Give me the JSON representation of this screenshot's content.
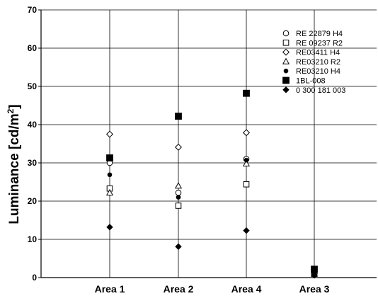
{
  "chart_data": {
    "type": "scatter",
    "ylabel": "Luminance [cd/m²]",
    "ylabel_main": "Luminance [cd/m",
    "ylabel_sup": "2",
    "ylabel_close": "]",
    "ylim": [
      0,
      70
    ],
    "yticks": [
      0,
      10,
      20,
      30,
      40,
      50,
      60,
      70
    ],
    "grid": "horizontal and vertical",
    "legend_placement": "top-right",
    "categories": [
      "Area 1",
      "Area 2",
      "Area 4",
      "Area 3"
    ],
    "series": [
      {
        "name": "RE 22879 H4",
        "marker": "open-circle",
        "values": [
          30.0,
          22.2,
          31.0,
          1.0
        ]
      },
      {
        "name": "RE 09237 R2",
        "marker": "open-square",
        "values": [
          23.3,
          18.8,
          24.4,
          1.0
        ]
      },
      {
        "name": "RE03411 H4",
        "marker": "open-diamond",
        "values": [
          37.5,
          34.1,
          37.9,
          1.0
        ]
      },
      {
        "name": "RE03210 R2",
        "marker": "open-triangle",
        "values": [
          22.2,
          24.0,
          29.8,
          1.0
        ]
      },
      {
        "name": "RE03210 H4",
        "marker": "filled-circle",
        "values": [
          26.9,
          21.0,
          30.7,
          1.0
        ]
      },
      {
        "name": "1BL-008",
        "marker": "filled-square",
        "values": [
          31.3,
          42.2,
          48.2,
          2.2
        ]
      },
      {
        "name": "0 300 181 003",
        "marker": "filled-diamond",
        "values": [
          13.2,
          8.1,
          12.3,
          0.6
        ]
      }
    ]
  }
}
